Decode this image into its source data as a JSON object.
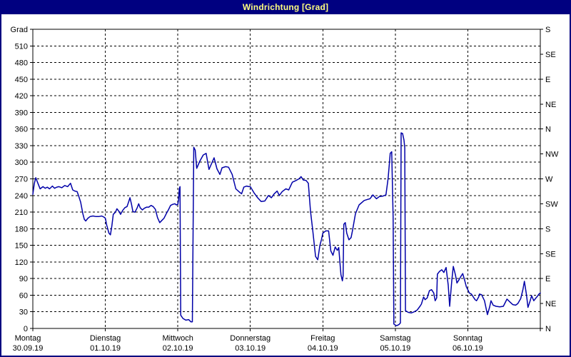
{
  "window": {
    "title": "Windrichtung [Grad]"
  },
  "colors": {
    "title_bar_bg": "#000080",
    "title_text": "#FFFF80",
    "window_border": "#000080",
    "panel_bg": "#FFFFFF",
    "grid": "#000000",
    "axis_text": "#000000",
    "line": "#0000A8"
  },
  "chart_data": {
    "type": "line",
    "title": "Windrichtung [Grad]",
    "grid": true,
    "y_axis_left": {
      "label_top": "Grad",
      "min": 0,
      "max": 540,
      "tick_step": 30
    },
    "y_axis_right": {
      "unit": "compass",
      "ticks": [
        {
          "deg": 540,
          "label": "S"
        },
        {
          "deg": 495,
          "label": "SE"
        },
        {
          "deg": 450,
          "label": "E"
        },
        {
          "deg": 405,
          "label": "NE"
        },
        {
          "deg": 360,
          "label": "N"
        },
        {
          "deg": 315,
          "label": "NW"
        },
        {
          "deg": 270,
          "label": "W"
        },
        {
          "deg": 225,
          "label": "SW"
        },
        {
          "deg": 180,
          "label": "S"
        },
        {
          "deg": 135,
          "label": "SE"
        },
        {
          "deg": 90,
          "label": "E"
        },
        {
          "deg": 45,
          "label": "NE"
        },
        {
          "deg": 0,
          "label": "N"
        }
      ]
    },
    "x_axis": {
      "span_days": 7,
      "days": [
        {
          "name": "Montag",
          "date": "30.09.19"
        },
        {
          "name": "Dienstag",
          "date": "01.10.19"
        },
        {
          "name": "Mittwoch",
          "date": "02.10.19"
        },
        {
          "name": "Donnerstag",
          "date": "03.10.19"
        },
        {
          "name": "Freitag",
          "date": "04.10.19"
        },
        {
          "name": "Samstag",
          "date": "05.10.19"
        },
        {
          "name": "Sonntag",
          "date": "06.10.19"
        }
      ]
    },
    "series": [
      {
        "name": "Windrichtung",
        "color": "#0000A8",
        "points_day_deg": [
          [
            0.0,
            242
          ],
          [
            0.02,
            261
          ],
          [
            0.04,
            272
          ],
          [
            0.07,
            262
          ],
          [
            0.1,
            252
          ],
          [
            0.14,
            256
          ],
          [
            0.17,
            253
          ],
          [
            0.2,
            255
          ],
          [
            0.23,
            252
          ],
          [
            0.27,
            257
          ],
          [
            0.3,
            253
          ],
          [
            0.33,
            255
          ],
          [
            0.36,
            256
          ],
          [
            0.4,
            254
          ],
          [
            0.44,
            258
          ],
          [
            0.48,
            256
          ],
          [
            0.52,
            262
          ],
          [
            0.55,
            250
          ],
          [
            0.58,
            248
          ],
          [
            0.61,
            247
          ],
          [
            0.63,
            240
          ],
          [
            0.66,
            228
          ],
          [
            0.69,
            207
          ],
          [
            0.71,
            197
          ],
          [
            0.73,
            194
          ],
          [
            0.76,
            199
          ],
          [
            0.79,
            202
          ],
          [
            0.83,
            203
          ],
          [
            0.87,
            202
          ],
          [
            0.91,
            202
          ],
          [
            0.95,
            203
          ],
          [
            0.98,
            201
          ],
          [
            1.0,
            199
          ],
          [
            1.02,
            186
          ],
          [
            1.05,
            172
          ],
          [
            1.07,
            169
          ],
          [
            1.09,
            185
          ],
          [
            1.11,
            206
          ],
          [
            1.14,
            210
          ],
          [
            1.16,
            216
          ],
          [
            1.19,
            211
          ],
          [
            1.21,
            206
          ],
          [
            1.24,
            213
          ],
          [
            1.27,
            218
          ],
          [
            1.3,
            220
          ],
          [
            1.32,
            228
          ],
          [
            1.34,
            236
          ],
          [
            1.36,
            225
          ],
          [
            1.38,
            211
          ],
          [
            1.41,
            210
          ],
          [
            1.44,
            218
          ],
          [
            1.46,
            225
          ],
          [
            1.48,
            218
          ],
          [
            1.51,
            214
          ],
          [
            1.54,
            217
          ],
          [
            1.57,
            219
          ],
          [
            1.6,
            219
          ],
          [
            1.63,
            222
          ],
          [
            1.66,
            220
          ],
          [
            1.69,
            215
          ],
          [
            1.72,
            200
          ],
          [
            1.75,
            191
          ],
          [
            1.78,
            195
          ],
          [
            1.81,
            199
          ],
          [
            1.84,
            207
          ],
          [
            1.87,
            214
          ],
          [
            1.9,
            222
          ],
          [
            1.93,
            224
          ],
          [
            1.96,
            225
          ],
          [
            1.98,
            223
          ],
          [
            2.0,
            224
          ],
          [
            2.01,
            232
          ],
          [
            2.02,
            252
          ],
          [
            2.03,
            256
          ],
          [
            2.04,
            24
          ],
          [
            2.07,
            18
          ],
          [
            2.11,
            15
          ],
          [
            2.15,
            16
          ],
          [
            2.18,
            12
          ],
          [
            2.2,
            12
          ],
          [
            2.22,
            327
          ],
          [
            2.24,
            322
          ],
          [
            2.26,
            289
          ],
          [
            2.3,
            301
          ],
          [
            2.35,
            313
          ],
          [
            2.39,
            316
          ],
          [
            2.43,
            287
          ],
          [
            2.47,
            299
          ],
          [
            2.5,
            308
          ],
          [
            2.54,
            288
          ],
          [
            2.58,
            278
          ],
          [
            2.61,
            290
          ],
          [
            2.66,
            292
          ],
          [
            2.7,
            291
          ],
          [
            2.75,
            278
          ],
          [
            2.8,
            252
          ],
          [
            2.85,
            246
          ],
          [
            2.88,
            243
          ],
          [
            2.91,
            255
          ],
          [
            2.95,
            257
          ],
          [
            2.98,
            256
          ],
          [
            3.0,
            256
          ],
          [
            3.05,
            245
          ],
          [
            3.1,
            236
          ],
          [
            3.15,
            229
          ],
          [
            3.2,
            230
          ],
          [
            3.25,
            240
          ],
          [
            3.29,
            236
          ],
          [
            3.33,
            243
          ],
          [
            3.37,
            248
          ],
          [
            3.4,
            240
          ],
          [
            3.44,
            247
          ],
          [
            3.49,
            252
          ],
          [
            3.53,
            250
          ],
          [
            3.58,
            264
          ],
          [
            3.63,
            267
          ],
          [
            3.67,
            270
          ],
          [
            3.7,
            274
          ],
          [
            3.73,
            268
          ],
          [
            3.77,
            267
          ],
          [
            3.8,
            262
          ],
          [
            3.83,
            212
          ],
          [
            3.86,
            178
          ],
          [
            3.9,
            130
          ],
          [
            3.93,
            124
          ],
          [
            3.96,
            150
          ],
          [
            3.98,
            160
          ],
          [
            4.0,
            172
          ],
          [
            4.04,
            176
          ],
          [
            4.08,
            176
          ],
          [
            4.11,
            140
          ],
          [
            4.14,
            132
          ],
          [
            4.17,
            147
          ],
          [
            4.2,
            141
          ],
          [
            4.22,
            146
          ],
          [
            4.24,
            112
          ],
          [
            4.25,
            97
          ],
          [
            4.27,
            86
          ],
          [
            4.28,
            95
          ],
          [
            4.29,
            188
          ],
          [
            4.31,
            191
          ],
          [
            4.33,
            172
          ],
          [
            4.36,
            160
          ],
          [
            4.39,
            164
          ],
          [
            4.41,
            177
          ],
          [
            4.45,
            207
          ],
          [
            4.5,
            223
          ],
          [
            4.57,
            231
          ],
          [
            4.62,
            233
          ],
          [
            4.65,
            234
          ],
          [
            4.69,
            241
          ],
          [
            4.74,
            234
          ],
          [
            4.78,
            238
          ],
          [
            4.83,
            239
          ],
          [
            4.87,
            241
          ],
          [
            4.9,
            270
          ],
          [
            4.92,
            300
          ],
          [
            4.93,
            316
          ],
          [
            4.95,
            319
          ],
          [
            4.97,
            200
          ],
          [
            4.98,
            8
          ],
          [
            5.0,
            6
          ],
          [
            5.02,
            5
          ],
          [
            5.05,
            7
          ],
          [
            5.07,
            10
          ],
          [
            5.08,
            353
          ],
          [
            5.1,
            352
          ],
          [
            5.12,
            340
          ],
          [
            5.13,
            326
          ],
          [
            5.14,
            32
          ],
          [
            5.18,
            29
          ],
          [
            5.22,
            28
          ],
          [
            5.26,
            30
          ],
          [
            5.3,
            33
          ],
          [
            5.34,
            40
          ],
          [
            5.36,
            44
          ],
          [
            5.39,
            57
          ],
          [
            5.41,
            52
          ],
          [
            5.44,
            55
          ],
          [
            5.47,
            68
          ],
          [
            5.5,
            70
          ],
          [
            5.53,
            64
          ],
          [
            5.55,
            50
          ],
          [
            5.57,
            55
          ],
          [
            5.58,
            98
          ],
          [
            5.61,
            103
          ],
          [
            5.64,
            106
          ],
          [
            5.67,
            101
          ],
          [
            5.7,
            110
          ],
          [
            5.73,
            78
          ],
          [
            5.75,
            40
          ],
          [
            5.78,
            88
          ],
          [
            5.8,
            112
          ],
          [
            5.83,
            96
          ],
          [
            5.85,
            82
          ],
          [
            5.88,
            88
          ],
          [
            5.9,
            93
          ],
          [
            5.93,
            99
          ],
          [
            5.96,
            85
          ],
          [
            5.98,
            75
          ],
          [
            6.0,
            70
          ],
          [
            6.02,
            64
          ],
          [
            6.05,
            62
          ],
          [
            6.07,
            58
          ],
          [
            6.1,
            52
          ],
          [
            6.12,
            50
          ],
          [
            6.15,
            57
          ],
          [
            6.16,
            62
          ],
          [
            6.19,
            61
          ],
          [
            6.23,
            50
          ],
          [
            6.27,
            25
          ],
          [
            6.3,
            38
          ],
          [
            6.32,
            50
          ],
          [
            6.35,
            42
          ],
          [
            6.39,
            40
          ],
          [
            6.44,
            39
          ],
          [
            6.49,
            40
          ],
          [
            6.54,
            53
          ],
          [
            6.58,
            48
          ],
          [
            6.62,
            43
          ],
          [
            6.66,
            42
          ],
          [
            6.69,
            45
          ],
          [
            6.73,
            54
          ],
          [
            6.76,
            70
          ],
          [
            6.78,
            85
          ],
          [
            6.81,
            60
          ],
          [
            6.83,
            38
          ],
          [
            6.86,
            50
          ],
          [
            6.88,
            59
          ],
          [
            6.91,
            50
          ],
          [
            6.94,
            55
          ],
          [
            6.96,
            58
          ],
          [
            6.98,
            62
          ],
          [
            7.0,
            64
          ]
        ]
      }
    ]
  }
}
